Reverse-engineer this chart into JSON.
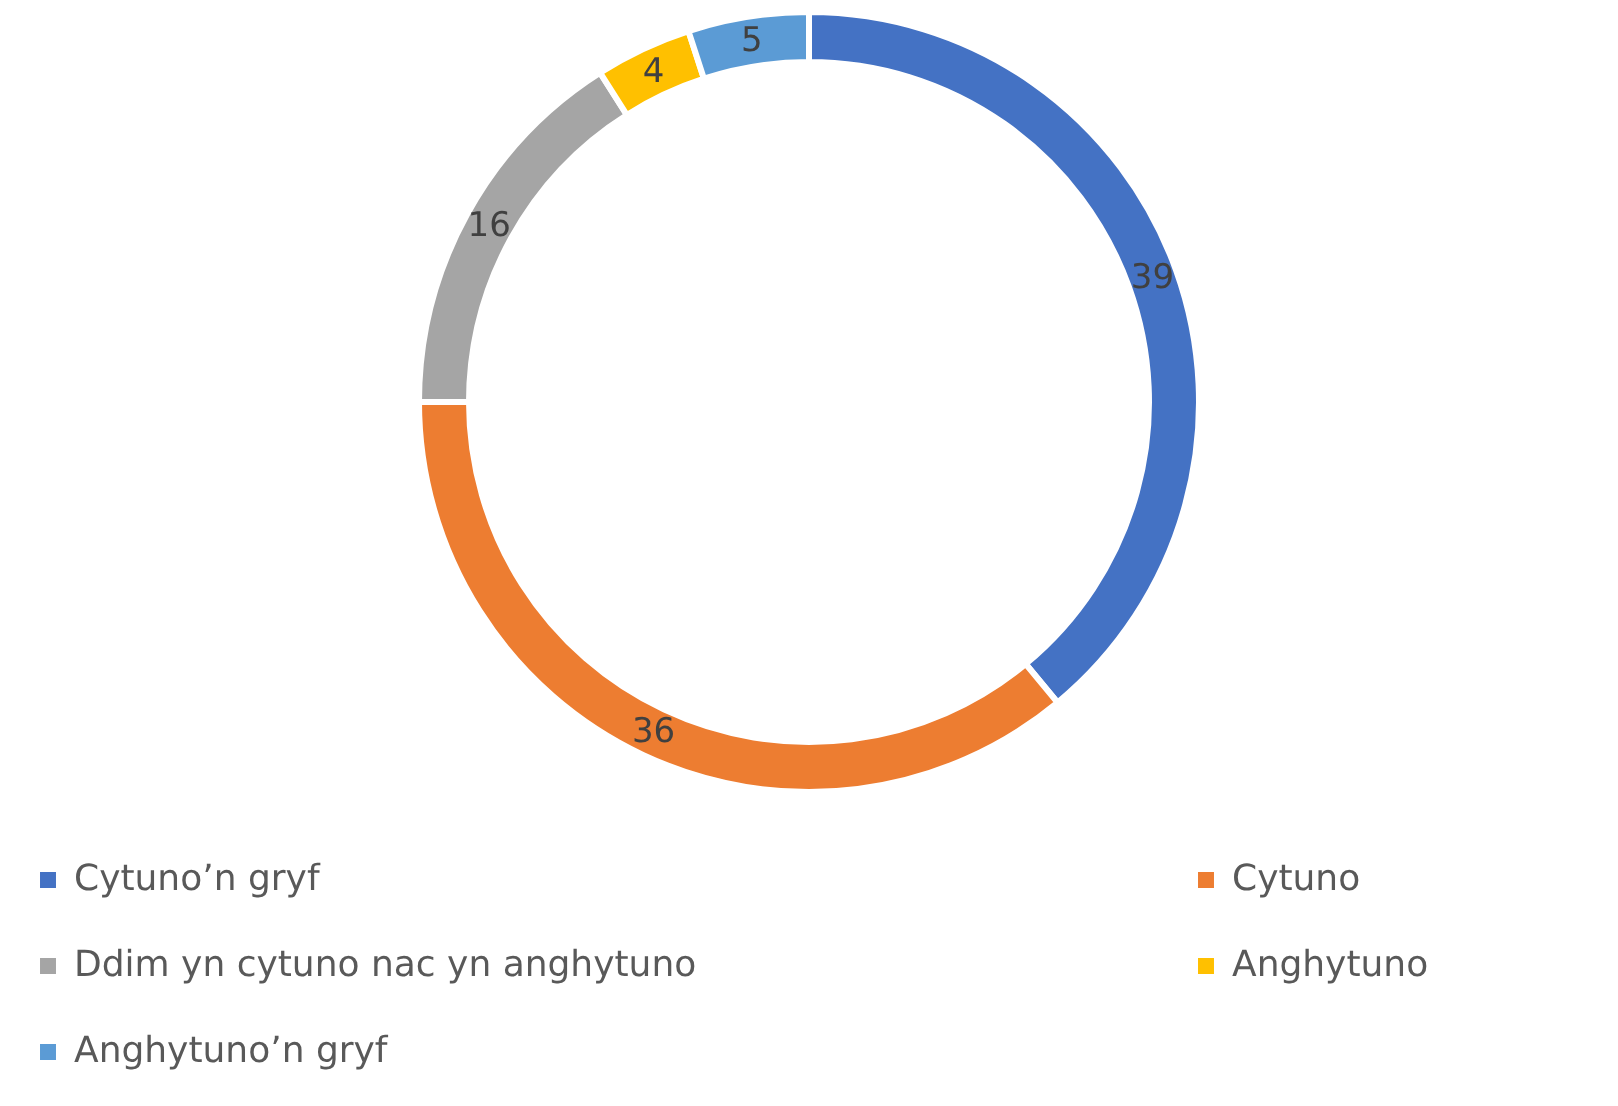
{
  "chart_data": {
    "type": "donut",
    "categories": [
      "Cytuno’n gryf",
      "Cytuno",
      "Ddim yn cytuno nac yn anghytuno",
      "Anghytuno",
      "Anghytuno’n gryf"
    ],
    "values": [
      39,
      36,
      16,
      4,
      5
    ],
    "colors": [
      "#4472c4",
      "#ed7d31",
      "#a5a5a5",
      "#ffc000",
      "#5b9bd5"
    ],
    "data_labels": true,
    "legend": "bottom"
  }
}
